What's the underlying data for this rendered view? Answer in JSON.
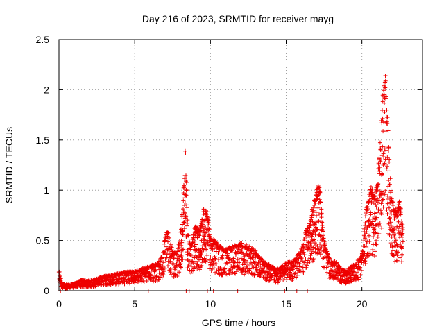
{
  "chart_data": {
    "type": "scatter",
    "title": "Day 216 of 2023, SRMTID for receiver mayg",
    "xlabel": "GPS time / hours",
    "ylabel": "SRMTID / TECUs",
    "xlim": [
      0,
      24
    ],
    "ylim": [
      0,
      2.5
    ],
    "x_ticks": [
      0,
      5,
      10,
      15,
      20
    ],
    "x_tick_labels": [
      "0",
      "5",
      "10",
      "15",
      "20"
    ],
    "y_ticks": [
      0,
      0.5,
      1,
      1.5,
      2,
      2.5
    ],
    "y_tick_labels": [
      "0",
      "0.5",
      "1",
      "1.5",
      "2",
      "2.5"
    ],
    "grid": true,
    "marker": "+",
    "color": "#ee0000",
    "series": [
      {
        "name": "SRMTID",
        "envelope": {
          "description": "approximate upper envelope of the point cloud (hours, TECU)",
          "x": [
            0,
            0.2,
            0.5,
            1.0,
            1.5,
            2.0,
            2.5,
            3.0,
            3.5,
            4.0,
            4.5,
            5.0,
            5.5,
            6.0,
            6.5,
            6.8,
            7.0,
            7.2,
            7.5,
            7.8,
            8.0,
            8.2,
            8.35,
            8.5,
            8.7,
            9.0,
            9.3,
            9.6,
            9.8,
            10.0,
            10.3,
            10.6,
            11.0,
            11.5,
            12.0,
            12.5,
            13.0,
            13.5,
            14.0,
            14.5,
            15.0,
            15.5,
            16.0,
            16.3,
            16.6,
            16.9,
            17.2,
            17.5,
            17.8,
            18.0,
            18.3,
            18.6,
            19.0,
            19.3,
            19.6,
            20.0,
            20.3,
            20.6,
            20.8,
            21.0,
            21.2,
            21.4,
            21.55,
            21.7,
            21.9,
            22.1,
            22.3,
            22.5,
            22.7
          ],
          "y": [
            0.2,
            0.08,
            0.06,
            0.07,
            0.11,
            0.1,
            0.12,
            0.15,
            0.16,
            0.18,
            0.19,
            0.2,
            0.22,
            0.25,
            0.27,
            0.35,
            0.55,
            0.6,
            0.4,
            0.38,
            0.55,
            0.9,
            1.5,
            0.6,
            0.45,
            0.65,
            0.6,
            0.85,
            0.78,
            0.55,
            0.5,
            0.45,
            0.42,
            0.45,
            0.48,
            0.45,
            0.4,
            0.3,
            0.25,
            0.22,
            0.28,
            0.3,
            0.42,
            0.6,
            0.72,
            0.95,
            1.08,
            0.5,
            0.35,
            0.28,
            0.3,
            0.22,
            0.2,
            0.25,
            0.28,
            0.35,
            0.85,
            1.05,
            0.95,
            1.05,
            1.5,
            2.0,
            2.18,
            1.75,
            1.05,
            0.85,
            0.8,
            0.9,
            0.65
          ]
        },
        "zero_points_x": [
          0.1,
          5.9,
          8.4,
          8.6,
          9.8,
          10.2,
          11.8,
          14.9,
          15.7,
          16.4
        ]
      }
    ]
  }
}
